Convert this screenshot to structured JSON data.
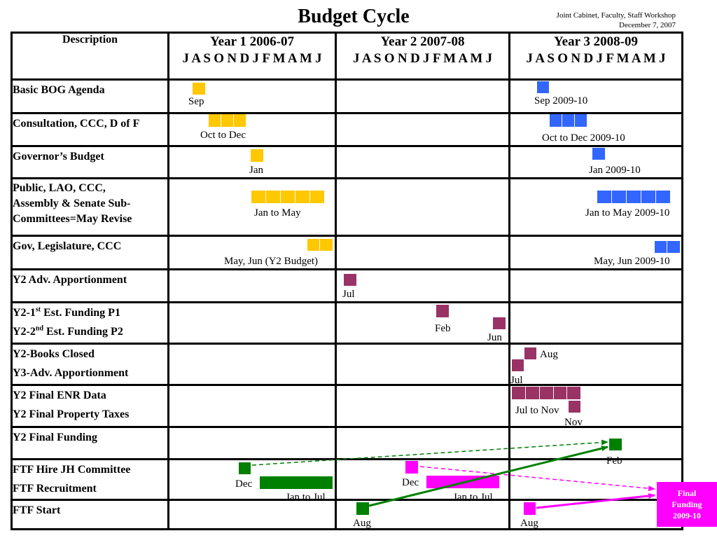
{
  "header": {
    "title": "Budget Cycle",
    "subtitle_line1": "Joint Cabinet, Faculty, Staff Workshop",
    "subtitle_line2": "December 7, 2007"
  },
  "columns": {
    "description": "Description",
    "year1": "Year 1   2006-07",
    "year2": "Year 2  2007-08",
    "year3": "Year 3   2008-09",
    "months": "J A S O N D J F M A M J"
  },
  "rows": {
    "r1": "Basic BOG Agenda",
    "r2": "Consultation, CCC, D of F",
    "r3": "Governor’s Budget",
    "r4a": "Public, LAO, CCC,",
    "r4b": "Assembly & Senate Sub-",
    "r4c": "Committees=May Revise",
    "r5": "Gov, Legislature, CCC",
    "r6": "Y2 Adv. Apportionment",
    "r7a_pre": "Y2-1",
    "r7a_sup": "st",
    "r7a_post": " Est. Funding P1",
    "r7b_pre": "Y2-2",
    "r7b_sup": "nd",
    "r7b_post": " Est. Funding P2",
    "r8a": "Y2-Books Closed",
    "r8b": "Y3-Adv. Apportionment",
    "r9a": "Y2 Final ENR Data",
    "r9b": "Y2 Final Property Taxes",
    "r10": "Y2 Final Funding",
    "r11a": "FTF Hire JH Committee",
    "r11b": "FTF Recruitment",
    "r12": "FTF Start"
  },
  "labels": {
    "sep": "Sep",
    "sep2": "Sep 2009-10",
    "octdec": "Oct to Dec",
    "octdec2": "Oct to Dec 2009-10",
    "jan": "Jan",
    "jan2": "Jan 2009-10",
    "janmay": "Jan to May",
    "janmay2": "Jan to May 2009-10",
    "mayjun": "May, Jun (Y2 Budget)",
    "mayjun2": "May, Jun 2009-10",
    "jul": "Jul",
    "feb": "Feb",
    "jun": "Jun",
    "aug": "Aug",
    "jul2": "Jul",
    "julnov": "Jul to Nov",
    "nov": "Nov",
    "feb2": "Feb",
    "dec1": "Dec",
    "dec2": "Dec",
    "jantojul1": "Jan to Jul",
    "jantojul2": "Jan to Jul",
    "aug1": "Aug",
    "aug2": "Aug"
  },
  "final_box": {
    "line1": "Final",
    "line2": "Funding",
    "line3": "2009-10"
  },
  "colors": {
    "year1": "#ffc800",
    "year3": "#3366ff",
    "ledger": "#993366",
    "ftf_green": "#008000",
    "ftf_magenta": "#ff00ff"
  }
}
